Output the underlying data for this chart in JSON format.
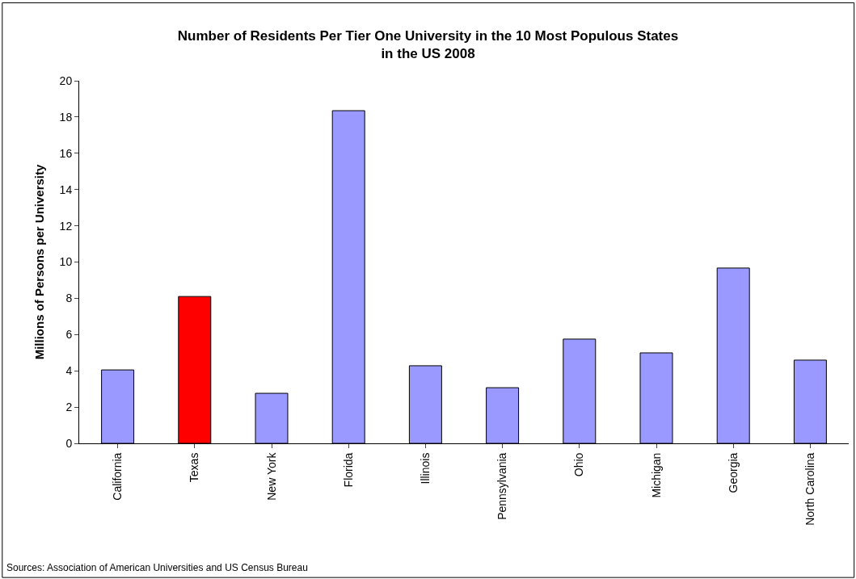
{
  "chart_data": {
    "type": "bar",
    "title": "Number of Residents Per Tier One University in the 10 Most Populous States\nin the US 2008",
    "ylabel": "Millions of Persons per University",
    "categories": [
      "California",
      "Texas",
      "New York",
      "Florida",
      "Illinois",
      "Pennsylvania",
      "Ohio",
      "Michigan",
      "Georgia",
      "North Carolina"
    ],
    "values": [
      4.05,
      8.1,
      2.76,
      18.35,
      4.28,
      3.07,
      5.75,
      4.99,
      9.67,
      4.59
    ],
    "colors": [
      "#9999ff",
      "#ff0000",
      "#9999ff",
      "#9999ff",
      "#9999ff",
      "#9999ff",
      "#9999ff",
      "#9999ff",
      "#9999ff",
      "#9999ff"
    ],
    "ylim": [
      0,
      20
    ],
    "yticks": [
      0,
      2,
      4,
      6,
      8,
      10,
      12,
      14,
      16,
      18,
      20
    ],
    "annotations": [
      "Sources: Association of American Universities and US Census Bureau"
    ]
  }
}
